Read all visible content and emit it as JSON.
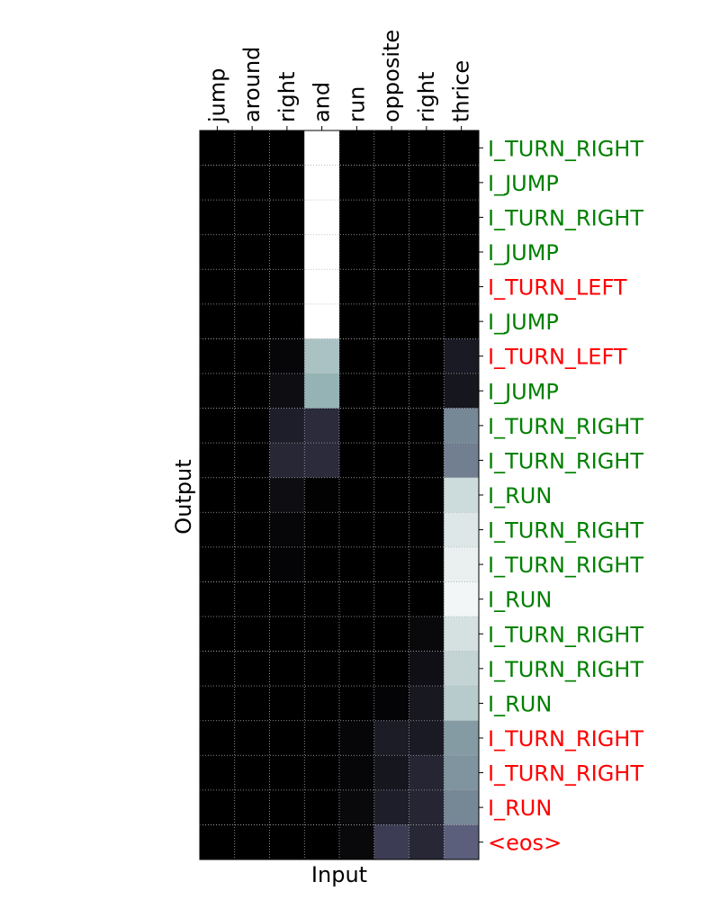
{
  "chart_data": {
    "type": "heatmap",
    "title": "",
    "xlabel": "Input",
    "ylabel": "Output",
    "x_tick_labels": [
      "jump",
      "around",
      "right",
      "and",
      "run",
      "opposite",
      "right",
      "thrice"
    ],
    "y_tick_labels": [
      "I_TURN_RIGHT",
      "I_JUMP",
      "I_TURN_RIGHT",
      "I_JUMP",
      "I_TURN_LEFT",
      "I_JUMP",
      "I_TURN_LEFT",
      "I_JUMP",
      "I_TURN_RIGHT",
      "I_TURN_RIGHT",
      "I_RUN",
      "I_TURN_RIGHT",
      "I_TURN_RIGHT",
      "I_RUN",
      "I_TURN_RIGHT",
      "I_TURN_RIGHT",
      "I_RUN",
      "I_TURN_RIGHT",
      "I_TURN_RIGHT",
      "I_RUN",
      "<eos>"
    ],
    "y_tick_label_status": [
      "correct",
      "correct",
      "correct",
      "correct",
      "incorrect",
      "correct",
      "incorrect",
      "correct",
      "correct",
      "correct",
      "correct",
      "correct",
      "correct",
      "correct",
      "correct",
      "correct",
      "correct",
      "incorrect",
      "incorrect",
      "incorrect",
      "incorrect"
    ],
    "status_colors": {
      "correct": "#008000",
      "incorrect": "#ff0000"
    },
    "colormap": "bone",
    "values": [
      [
        0,
        0,
        0,
        1.0,
        0,
        0,
        0,
        0
      ],
      [
        0,
        0,
        0,
        1.0,
        0,
        0,
        0,
        0
      ],
      [
        0,
        0,
        0,
        1.0,
        0,
        0,
        0,
        0
      ],
      [
        0,
        0,
        0,
        1.0,
        0,
        0,
        0,
        0
      ],
      [
        0,
        0,
        0,
        1.0,
        0,
        0,
        0,
        0
      ],
      [
        0,
        0,
        0,
        1.0,
        0,
        0,
        0,
        0
      ],
      [
        0,
        0,
        0.03,
        0.8,
        0,
        0,
        0,
        0.12
      ],
      [
        0,
        0,
        0.06,
        0.75,
        0,
        0,
        0,
        0.1
      ],
      [
        0,
        0,
        0.14,
        0.2,
        0,
        0,
        0,
        0.58
      ],
      [
        0,
        0,
        0.18,
        0.2,
        0,
        0,
        0,
        0.55
      ],
      [
        0,
        0,
        0.06,
        0.01,
        0,
        0,
        0,
        0.88
      ],
      [
        0,
        0,
        0.03,
        0,
        0,
        0,
        0,
        0.92
      ],
      [
        0,
        0,
        0.02,
        0,
        0,
        0,
        0,
        0.95
      ],
      [
        0,
        0,
        0,
        0,
        0,
        0,
        0,
        0.97
      ],
      [
        0,
        0,
        0,
        0,
        0,
        0,
        0.04,
        0.9
      ],
      [
        0,
        0,
        0,
        0,
        0,
        0,
        0.07,
        0.86
      ],
      [
        0,
        0,
        0,
        0,
        0,
        0.02,
        0.11,
        0.83
      ],
      [
        0,
        0,
        0,
        0,
        0.03,
        0.13,
        0.12,
        0.66
      ],
      [
        0,
        0,
        0,
        0,
        0.03,
        0.1,
        0.17,
        0.63
      ],
      [
        0,
        0,
        0,
        0,
        0.04,
        0.14,
        0.17,
        0.58
      ],
      [
        0,
        0,
        0,
        0,
        0.04,
        0.28,
        0.18,
        0.43
      ]
    ],
    "vmin": 0,
    "vmax": 1,
    "grid": true
  }
}
